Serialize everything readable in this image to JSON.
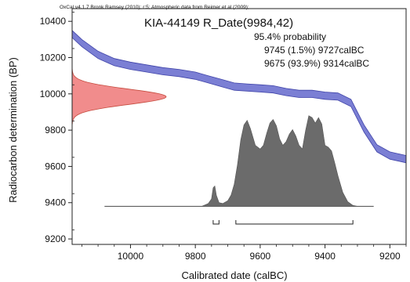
{
  "chart_data": {
    "type": "area",
    "header": "OxCal v4.1.7 Bronk Ramsey (2010); r:5; Atmospheric data from Reimer et al (2009);",
    "title": "KIA-44149 R_Date(9984,42)",
    "annotations": {
      "probability": "95.4% probability",
      "range1": "9745 (1.5%) 9727calBC",
      "range2": "9675 (93.9%) 9314calBC"
    },
    "xlabel": "Calibrated date (calBC)",
    "ylabel": "Radiocarbon determination (BP)",
    "x_reversed": true,
    "xlim": [
      10180,
      9150
    ],
    "ylim": [
      9170,
      10470
    ],
    "x_ticks": [
      10000,
      9800,
      9600,
      9400,
      9200
    ],
    "y_ticks": [
      9200,
      9400,
      9600,
      9800,
      10000,
      10200,
      10400
    ],
    "calibration_curve": {
      "x": [
        10180,
        10150,
        10100,
        10050,
        10000,
        9950,
        9900,
        9850,
        9800,
        9760,
        9720,
        9680,
        9640,
        9600,
        9560,
        9520,
        9480,
        9440,
        9400,
        9360,
        9320,
        9280,
        9240,
        9200,
        9150
      ],
      "y": [
        10330,
        10280,
        10215,
        10175,
        10155,
        10140,
        10125,
        10115,
        10100,
        10080,
        10060,
        10040,
        10035,
        10030,
        10025,
        10010,
        10000,
        10000,
        9990,
        9985,
        9950,
        9810,
        9700,
        9660,
        9640
      ],
      "sigma": [
        20,
        20,
        20,
        20,
        20,
        20,
        20,
        20,
        20,
        20,
        20,
        20,
        20,
        20,
        20,
        20,
        20,
        20,
        20,
        20,
        20,
        20,
        20,
        20,
        20
      ],
      "color": "#7b7fd4",
      "edge_color": "#3f43a8"
    },
    "measurement": {
      "mean": 9984,
      "sigma": 42,
      "color": "#f08080",
      "edge_color": "#c0392b"
    },
    "posterior": {
      "x": [
        10080,
        9780,
        9760,
        9750,
        9745,
        9740,
        9735,
        9727,
        9715,
        9700,
        9690,
        9680,
        9670,
        9660,
        9650,
        9640,
        9630,
        9615,
        9600,
        9590,
        9580,
        9570,
        9560,
        9550,
        9540,
        9530,
        9520,
        9510,
        9500,
        9490,
        9480,
        9470,
        9460,
        9450,
        9440,
        9430,
        9420,
        9410,
        9400,
        9390,
        9380,
        9370,
        9360,
        9345,
        9330,
        9314,
        9300,
        9250
      ],
      "p": [
        0,
        0,
        0.03,
        0.08,
        0.2,
        0.22,
        0.12,
        0.04,
        0.03,
        0.06,
        0.12,
        0.24,
        0.45,
        0.72,
        0.88,
        0.93,
        0.84,
        0.66,
        0.62,
        0.66,
        0.79,
        0.9,
        0.94,
        0.87,
        0.73,
        0.66,
        0.7,
        0.78,
        0.83,
        0.76,
        0.66,
        0.62,
        0.82,
        0.98,
        0.96,
        0.9,
        0.96,
        0.89,
        0.66,
        0.64,
        0.6,
        0.47,
        0.33,
        0.15,
        0.05,
        0.01,
        0,
        0
      ],
      "baseline": 9380,
      "color": "#6b6b6b"
    },
    "ranges_95": [
      [
        9745,
        9727
      ],
      [
        9675,
        9314
      ]
    ]
  }
}
